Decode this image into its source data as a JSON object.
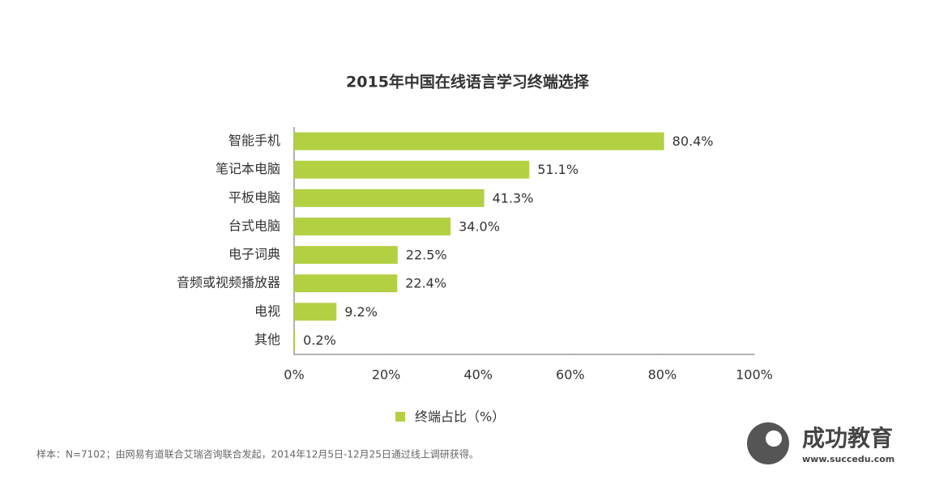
{
  "chart_data": {
    "type": "barh",
    "title": "2015年中国在线语言学习终端选择",
    "categories": [
      "智能手机",
      "笔记本电脑",
      "平板电脑",
      "台式电脑",
      "电子词典",
      "音频或视频播放器",
      "电视",
      "其他"
    ],
    "series": [
      {
        "name": "终端占比（%）",
        "color": "#b3d043",
        "values": [
          80.4,
          51.1,
          41.3,
          34.0,
          22.5,
          22.4,
          9.2,
          0.2
        ],
        "value_labels": [
          "80.4%",
          "51.1%",
          "41.3%",
          "34.0%",
          "22.5%",
          "22.4%",
          "9.2%",
          "0.2%"
        ]
      }
    ],
    "xlim": [
      0,
      100
    ],
    "xticks": [
      {
        "value": 0,
        "label": "0%"
      },
      {
        "value": 20,
        "label": "20%"
      },
      {
        "value": 40,
        "label": "40%"
      },
      {
        "value": 60,
        "label": "60%"
      },
      {
        "value": 80,
        "label": "80%"
      },
      {
        "value": 100,
        "label": "100%"
      }
    ],
    "grid": false,
    "legend": "bottom",
    "note": "样本：N=7102；由网易有道联合艾瑞咨询联合发起，2014年12月5日-12月25日通过线上调研获得。"
  },
  "watermark": {
    "name": "成功教育",
    "url": "www.succedu.com"
  }
}
